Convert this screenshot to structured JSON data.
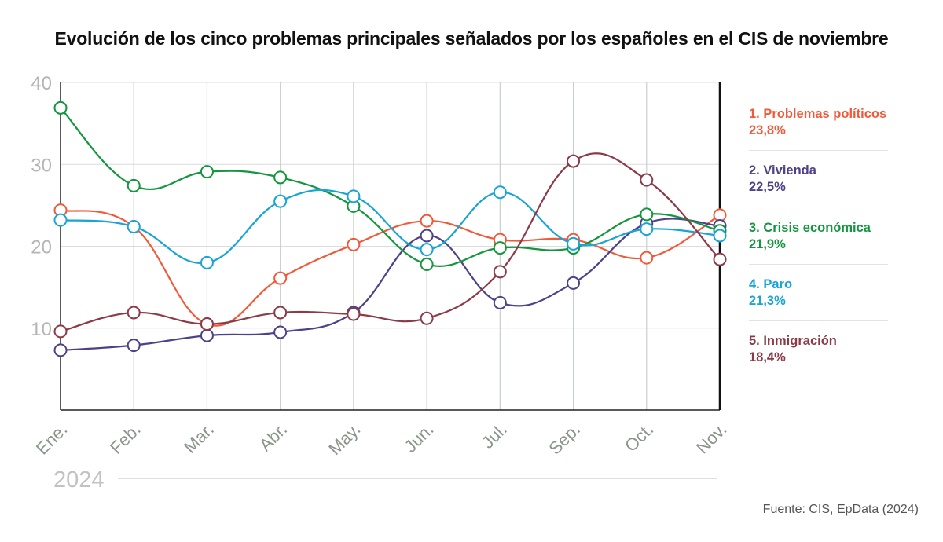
{
  "title": "Evolución de los cinco problemas principales señalados por los españoles en el CIS de noviembre",
  "source": "Fuente: CIS, EpData (2024)",
  "chart_data": {
    "type": "line",
    "year_label": "2024",
    "categories": [
      "Ene.",
      "Feb.",
      "Mar.",
      "Abr.",
      "May.",
      "Jun.",
      "Jul.",
      "Sep.",
      "Oct.",
      "Nov."
    ],
    "ylim": [
      0,
      40
    ],
    "yticks": [
      10,
      20,
      30,
      40
    ],
    "grid": true,
    "legend_position": "right",
    "series": [
      {
        "name": "1.  Problemas políticos",
        "value_label": "23,8%",
        "color": "#ef5b3a",
        "values": [
          24.4,
          22.4,
          10.5,
          16.1,
          20.2,
          23.1,
          20.8,
          20.8,
          18.6,
          23.8
        ]
      },
      {
        "name": "2. Vivienda",
        "value_label": "22,5%",
        "color": "#4e4189",
        "values": [
          7.3,
          7.9,
          9.1,
          9.5,
          11.9,
          21.3,
          13.1,
          15.5,
          22.8,
          22.5
        ]
      },
      {
        "name": "3. Crisis económica",
        "value_label": "21,9%",
        "color": "#14963e",
        "values": [
          36.9,
          27.4,
          29.1,
          28.4,
          24.9,
          17.8,
          19.8,
          19.8,
          23.9,
          21.9
        ]
      },
      {
        "name": "4. Paro",
        "value_label": "21,3%",
        "color": "#18a4d4",
        "values": [
          23.2,
          22.4,
          18.0,
          25.5,
          26.1,
          19.6,
          26.6,
          20.3,
          22.1,
          21.3
        ]
      },
      {
        "name": "5. Inmigración",
        "value_label": "18,4%",
        "color": "#8c3a48",
        "values": [
          9.6,
          11.9,
          10.5,
          11.9,
          11.7,
          11.2,
          16.9,
          30.4,
          28.1,
          18.4
        ]
      }
    ]
  }
}
